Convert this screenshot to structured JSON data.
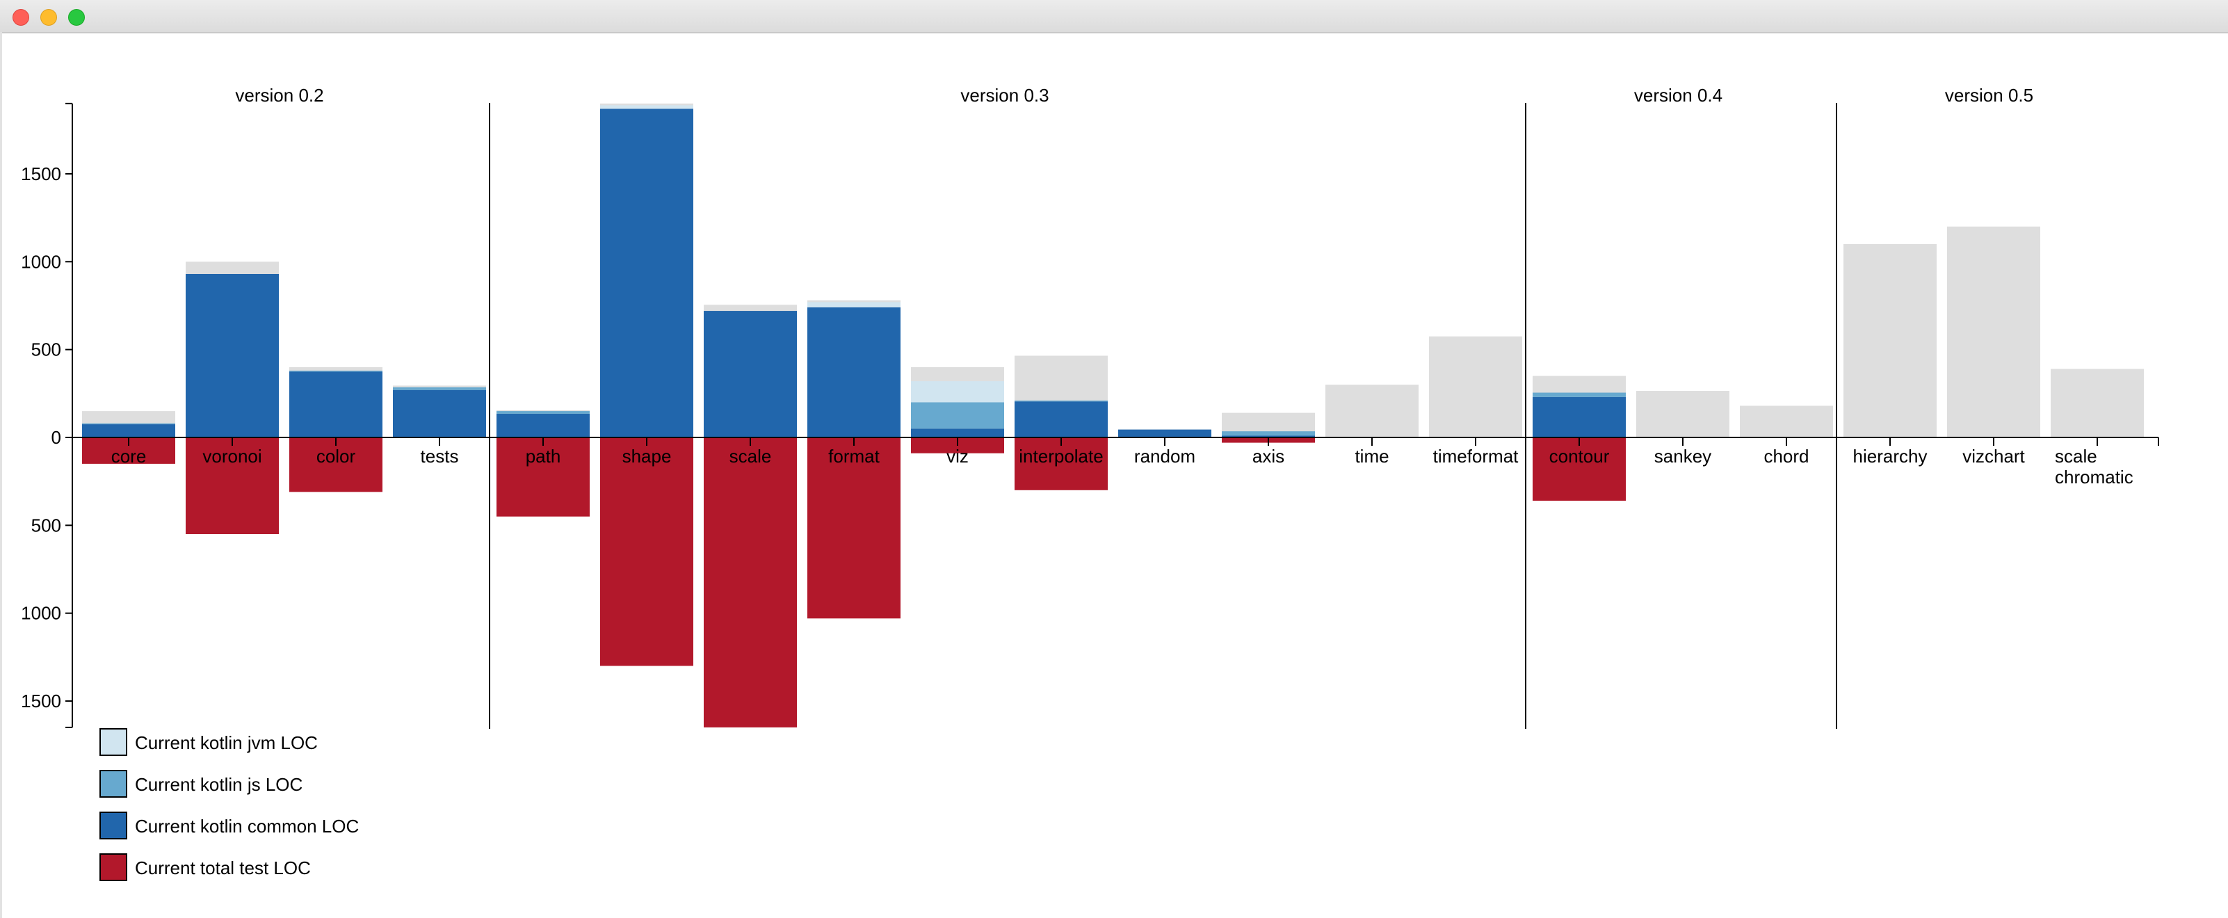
{
  "window": {
    "title": ""
  },
  "chart_data": {
    "type": "bar",
    "title": "",
    "xlabel": "",
    "ylabel": "",
    "ylim": [
      -1650,
      1900
    ],
    "yticks": [
      1500,
      1000,
      500,
      0,
      -500,
      -1000,
      -1500
    ],
    "ytick_labels": [
      "1500",
      "1000",
      "500",
      "0",
      "500",
      "1000",
      "1500"
    ],
    "groups": [
      {
        "label": "version 0.2",
        "start": 0,
        "end": 3
      },
      {
        "label": "version 0.3",
        "start": 4,
        "end": 13
      },
      {
        "label": "version 0.4",
        "start": 14,
        "end": 16
      },
      {
        "label": "version 0.5",
        "start": 17,
        "end": 19
      }
    ],
    "categories": [
      "core",
      "voronoi",
      "color",
      "tests",
      "path",
      "shape",
      "scale",
      "format",
      "viz",
      "interpolate",
      "random",
      "axis",
      "time",
      "timeformat",
      "contour",
      "sankey",
      "chord",
      "hierarchy",
      "vizchart",
      "scale chromatic"
    ],
    "series": [
      {
        "name": "Current kotlin common LOC",
        "color": "#2166ac",
        "values": [
          75,
          930,
          375,
          270,
          135,
          1870,
          720,
          740,
          50,
          205,
          45,
          10,
          0,
          0,
          230,
          0,
          0,
          0,
          0,
          0
        ]
      },
      {
        "name": "Current kotlin js LOC",
        "color": "#67a9cf",
        "values": [
          5,
          0,
          5,
          15,
          15,
          0,
          0,
          0,
          150,
          5,
          0,
          25,
          0,
          0,
          25,
          0,
          0,
          0,
          0,
          0
        ]
      },
      {
        "name": "Current kotlin jvm LOC",
        "color": "#d1e5f0",
        "values": [
          0,
          0,
          0,
          0,
          0,
          20,
          0,
          30,
          120,
          0,
          0,
          0,
          0,
          0,
          0,
          0,
          0,
          0,
          0,
          0
        ]
      },
      {
        "name": "Current total test LOC",
        "color": "#b2182b",
        "values": [
          150,
          550,
          310,
          0,
          450,
          1300,
          1650,
          1030,
          90,
          300,
          0,
          30,
          0,
          0,
          360,
          0,
          0,
          0,
          0,
          0
        ]
      }
    ],
    "estimated_total_loc": [
      150,
      1000,
      400,
      295,
      155,
      1900,
      755,
      780,
      400,
      465,
      45,
      140,
      300,
      575,
      350,
      265,
      180,
      1100,
      1200,
      390
    ],
    "legend": {
      "position": "bottom-left",
      "items": [
        {
          "label": "Current kotlin jvm LOC",
          "color": "#d1e5f0"
        },
        {
          "label": "Current kotlin js LOC",
          "color": "#67a9cf"
        },
        {
          "label": "Current kotlin common LOC",
          "color": "#2166ac"
        },
        {
          "label": "Current total test LOC",
          "color": "#b2182b"
        }
      ]
    },
    "colors": {
      "estimate": "#dedede",
      "axis": "#000000",
      "text": "#000000"
    },
    "grid": false
  }
}
